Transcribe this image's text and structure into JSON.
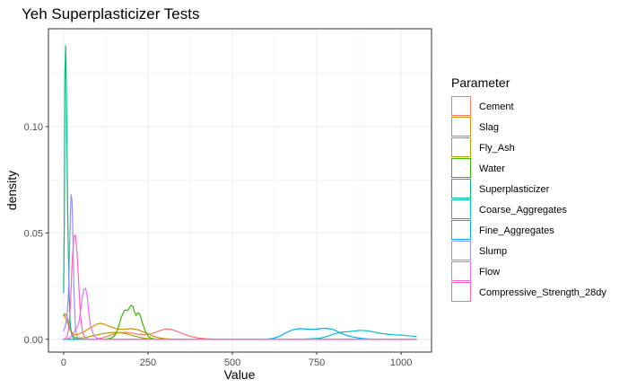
{
  "chart_data": {
    "type": "line",
    "title": "Yeh Superplasticizer Tests",
    "xlabel": "Value",
    "ylabel": "density",
    "xlim": [
      -45,
      1090
    ],
    "ylim": [
      -0.006,
      0.146
    ],
    "xticks": [
      0,
      250,
      500,
      750,
      1000
    ],
    "xtick_labels": [
      "0",
      "250",
      "500",
      "750",
      "1000"
    ],
    "yticks": [
      0,
      0.05,
      0.1
    ],
    "ytick_labels": [
      "0.00",
      "0.05",
      "0.10"
    ],
    "grid": true,
    "legend": {
      "title": "Parameter",
      "position": "right"
    },
    "series": [
      {
        "name": "Cement",
        "color": "#F8766D",
        "x": [
          80,
          100,
          120,
          140,
          160,
          180,
          200,
          220,
          240,
          260,
          280,
          300,
          320,
          340,
          360,
          380,
          400,
          420,
          440,
          460,
          480,
          500,
          520,
          540,
          560,
          580,
          600,
          640,
          700,
          800,
          900,
          1000,
          1045
        ],
        "y": [
          0,
          0.0002,
          0.0009,
          0.002,
          0.003,
          0.0033,
          0.003,
          0.0024,
          0.0022,
          0.0026,
          0.0038,
          0.0048,
          0.0046,
          0.0035,
          0.0022,
          0.0012,
          0.0006,
          0.0003,
          0.0001,
          0,
          0,
          0,
          0,
          0,
          0,
          0,
          0,
          0,
          0,
          0,
          0,
          0,
          0
        ]
      },
      {
        "name": "Slag",
        "color": "#D89000",
        "x": [
          0,
          10,
          20,
          30,
          40,
          60,
          80,
          100,
          110,
          120,
          140,
          160,
          180,
          200,
          220,
          240,
          260,
          280,
          300,
          320,
          340,
          360,
          380,
          400,
          450,
          500,
          600,
          700,
          800,
          900,
          1000,
          1045
        ],
        "y": [
          0.012,
          0.0085,
          0.004,
          0.0022,
          0.0022,
          0.0035,
          0.0055,
          0.0072,
          0.0075,
          0.0071,
          0.0058,
          0.0048,
          0.0047,
          0.005,
          0.0045,
          0.0032,
          0.0018,
          0.0008,
          0.0003,
          0.0001,
          0,
          0,
          0,
          0,
          0,
          0,
          0,
          0,
          0,
          0,
          0,
          0
        ]
      },
      {
        "name": "Fly_Ash",
        "color": "#A3A500",
        "x": [
          0,
          5,
          10,
          15,
          20,
          25,
          30,
          40,
          60,
          80,
          100,
          120,
          140,
          160,
          180,
          200,
          220,
          240,
          260,
          280,
          300,
          400,
          500,
          600,
          700,
          800,
          900,
          1000,
          1045
        ],
        "y": [
          0.011,
          0.012,
          0.0105,
          0.0075,
          0.0045,
          0.0025,
          0.0012,
          0.0006,
          0.0007,
          0.0014,
          0.0022,
          0.0028,
          0.0031,
          0.0032,
          0.0028,
          0.002,
          0.0011,
          0.0005,
          0.0002,
          0,
          0,
          0,
          0,
          0,
          0,
          0,
          0,
          0,
          0
        ]
      },
      {
        "name": "Water",
        "color": "#39B600",
        "x": [
          120,
          140,
          150,
          160,
          170,
          180,
          185,
          190,
          195,
          200,
          205,
          210,
          215,
          220,
          225,
          230,
          240,
          250,
          260,
          280,
          300,
          400,
          500,
          600,
          700,
          800,
          900,
          1000,
          1045
        ],
        "y": [
          0,
          0.0005,
          0.0015,
          0.0045,
          0.01,
          0.0135,
          0.0138,
          0.0135,
          0.0148,
          0.016,
          0.0155,
          0.013,
          0.0112,
          0.0125,
          0.012,
          0.0095,
          0.0045,
          0.0015,
          0.0004,
          0,
          0,
          0,
          0,
          0,
          0,
          0,
          0,
          0,
          0
        ]
      },
      {
        "name": "Superplasticizer",
        "color": "#00BF7D",
        "x": [
          0,
          2,
          4,
          6,
          8,
          10,
          12,
          14,
          16,
          18,
          20,
          25,
          30,
          40,
          50,
          100,
          200,
          400,
          600,
          800,
          1000,
          1045
        ],
        "y": [
          0.022,
          0.055,
          0.125,
          0.138,
          0.12,
          0.09,
          0.062,
          0.04,
          0.025,
          0.012,
          0.006,
          0.0015,
          0.0004,
          0,
          0,
          0,
          0,
          0,
          0,
          0,
          0,
          0
        ]
      },
      {
        "name": "Coarse_Aggregates",
        "color": "#00BFC4",
        "x": [
          0,
          400,
          700,
          760,
          780,
          800,
          820,
          840,
          860,
          880,
          900,
          920,
          940,
          960,
          980,
          1000,
          1020,
          1045
        ],
        "y": [
          0,
          0,
          0,
          0.0005,
          0.0013,
          0.0025,
          0.0033,
          0.0036,
          0.0039,
          0.0042,
          0.004,
          0.0034,
          0.0028,
          0.0024,
          0.0021,
          0.002,
          0.0017,
          0.0013
        ]
      },
      {
        "name": "Fine_Aggregates",
        "color": "#00B0F6",
        "x": [
          0,
          400,
          580,
          600,
          620,
          640,
          660,
          680,
          700,
          720,
          740,
          760,
          780,
          800,
          820,
          840,
          860,
          880,
          900,
          920,
          940,
          960,
          1000,
          1045
        ],
        "y": [
          0,
          0,
          0,
          0.0001,
          0.0004,
          0.0014,
          0.0032,
          0.0045,
          0.005,
          0.0048,
          0.0046,
          0.005,
          0.0052,
          0.0045,
          0.003,
          0.0018,
          0.001,
          0.0005,
          0.0002,
          0.0001,
          0,
          0,
          0,
          0
        ]
      },
      {
        "name": "Slump",
        "color": "#9590FF",
        "x": [
          0,
          5,
          10,
          15,
          20,
          22,
          25,
          28,
          30,
          35,
          40,
          50,
          60,
          100,
          200,
          400,
          600,
          800,
          1000,
          1045
        ],
        "y": [
          0.004,
          0.006,
          0.01,
          0.025,
          0.06,
          0.068,
          0.065,
          0.045,
          0.025,
          0.005,
          0.001,
          0,
          0,
          0,
          0,
          0,
          0,
          0,
          0,
          0
        ]
      },
      {
        "name": "Flow",
        "color": "#E76BF3",
        "x": [
          0,
          10,
          20,
          30,
          40,
          45,
          50,
          55,
          60,
          65,
          70,
          75,
          80,
          90,
          100,
          120,
          150,
          200,
          400,
          600,
          800,
          1000,
          1045
        ],
        "y": [
          0,
          0.0002,
          0.0009,
          0.0032,
          0.0058,
          0.0078,
          0.013,
          0.0195,
          0.0235,
          0.024,
          0.02,
          0.012,
          0.006,
          0.0015,
          0.0004,
          0,
          0,
          0,
          0,
          0,
          0,
          0,
          0
        ]
      },
      {
        "name": "Compressive_Strength_28dy",
        "color": "#FF62BC",
        "x": [
          0,
          5,
          10,
          15,
          20,
          25,
          30,
          35,
          40,
          45,
          50,
          55,
          60,
          70,
          80,
          100,
          150,
          200,
          400,
          600,
          800,
          1000,
          1045
        ],
        "y": [
          0,
          0.0003,
          0.0015,
          0.005,
          0.016,
          0.035,
          0.048,
          0.049,
          0.04,
          0.025,
          0.011,
          0.0045,
          0.0015,
          0.0002,
          0,
          0,
          0,
          0,
          0,
          0,
          0,
          0,
          0
        ]
      }
    ]
  }
}
